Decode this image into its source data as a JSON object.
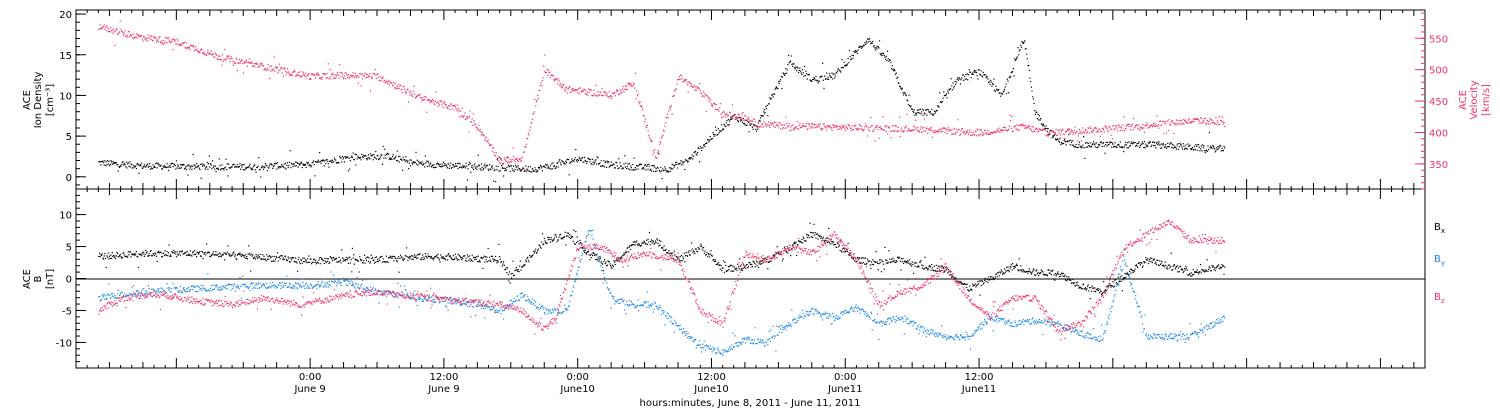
{
  "chart_data": [
    {
      "type": "scatter",
      "panel": "top",
      "left_axis": {
        "label_lines": [
          "ACE",
          "Ion Density",
          "[cm⁻³]"
        ],
        "ylim": [
          -1.5,
          20.5
        ],
        "ticks": [
          "0",
          "5",
          "10",
          "15",
          "20"
        ],
        "tick_values": [
          0,
          5,
          10,
          15,
          20
        ]
      },
      "right_axis": {
        "label_lines": [
          "ACE",
          "Velocity",
          "[km/s]"
        ],
        "ylim": [
          310,
          595
        ],
        "ticks": [
          "350",
          "400",
          "450",
          "500",
          "550"
        ],
        "tick_values": [
          350,
          400,
          450,
          500,
          550
        ],
        "color": "#ee3366"
      },
      "series": [
        {
          "axis": "left",
          "color": "#000000",
          "x": [
            -19,
            -15,
            -10,
            -5,
            0,
            4,
            7,
            9,
            12,
            15,
            18,
            20,
            22,
            24,
            27,
            30,
            32,
            34,
            36,
            38,
            40,
            41,
            43,
            45,
            47,
            50,
            52,
            54,
            56,
            58,
            60,
            62,
            64,
            65,
            66,
            67,
            69,
            70,
            72,
            74,
            76,
            78,
            80,
            82
          ],
          "y": [
            1.8,
            1.4,
            1.3,
            1.3,
            1.6,
            2.5,
            2.6,
            1.8,
            1.5,
            1.3,
            1.1,
            1.0,
            1.5,
            2.3,
            1.5,
            1.2,
            1.0,
            2.2,
            5.0,
            7.5,
            6.0,
            9.0,
            14.0,
            12.0,
            12.5,
            17.0,
            14.0,
            8.0,
            8.0,
            12.0,
            13.0,
            10.0,
            17.0,
            8.0,
            6.0,
            4.5,
            4.0,
            4.0,
            4.0,
            4.0,
            4.0,
            3.8,
            3.6,
            3.5
          ]
        },
        {
          "axis": "right",
          "color": "#ee3366",
          "x": [
            -19,
            -16,
            -12,
            -8,
            -4,
            0,
            3,
            6,
            10,
            13,
            15,
            17,
            19,
            21,
            23,
            25,
            27,
            29,
            31,
            33,
            35,
            37,
            39,
            40,
            42,
            45,
            50,
            55,
            60,
            64,
            66,
            70,
            74,
            76,
            80,
            82
          ],
          "y": [
            570,
            555,
            545,
            520,
            505,
            490,
            492,
            490,
            455,
            440,
            410,
            355,
            360,
            500,
            470,
            465,
            460,
            480,
            360,
            490,
            465,
            430,
            425,
            415,
            412,
            410,
            408,
            406,
            400,
            410,
            400,
            405,
            410,
            415,
            420,
            415
          ]
        }
      ]
    },
    {
      "type": "scatter",
      "panel": "bottom",
      "left_axis": {
        "label_lines": [
          "ACE",
          "B",
          "[nT]"
        ],
        "ylim": [
          -14,
          14
        ],
        "ticks": [
          "-10",
          "-5",
          "0",
          "5",
          "10"
        ],
        "tick_values": [
          -10,
          -5,
          0,
          5,
          10
        ]
      },
      "legend": {
        "placement": "right",
        "entries": [
          {
            "label": "B",
            "sub": "x",
            "color": "#000000"
          },
          {
            "label": "B",
            "sub": "y",
            "color": "#1e88e5"
          },
          {
            "label": "B",
            "sub": "z",
            "color": "#ee3366"
          }
        ]
      },
      "series": [
        {
          "name": "Bx",
          "color": "#000000",
          "x": [
            -19,
            -15,
            -10,
            -5,
            0,
            3,
            6,
            10,
            12,
            15,
            17,
            18,
            19,
            21,
            23,
            25,
            27,
            29,
            31,
            33,
            35,
            37,
            39,
            41,
            43,
            45,
            47,
            49,
            51,
            53,
            55,
            57,
            59,
            61,
            63,
            65,
            67,
            69,
            71,
            73,
            75,
            77,
            79,
            82
          ],
          "y": [
            3.5,
            4.0,
            4.0,
            3.5,
            2.8,
            3.0,
            3.0,
            3.5,
            3.5,
            3.2,
            3.0,
            0.5,
            2.0,
            6.0,
            7.0,
            4.0,
            2.0,
            5.5,
            6.0,
            3.0,
            5.0,
            1.5,
            2.0,
            3.0,
            5.0,
            7.0,
            5.5,
            3.0,
            2.5,
            3.0,
            2.0,
            1.5,
            -1.5,
            0.0,
            2.0,
            1.0,
            1.0,
            -1.0,
            -2.0,
            0.5,
            3.0,
            2.0,
            1.0,
            2.0
          ]
        },
        {
          "name": "By",
          "color": "#1e88e5",
          "x": [
            -19,
            -15,
            -10,
            -5,
            0,
            3,
            6,
            10,
            13,
            15,
            17,
            19,
            21,
            23,
            25,
            27,
            29,
            31,
            33,
            35,
            37,
            39,
            41,
            43,
            45,
            47,
            49,
            51,
            53,
            55,
            57,
            59,
            61,
            63,
            65,
            67,
            69,
            71,
            73,
            75,
            77,
            79,
            82
          ],
          "y": [
            -3.0,
            -2.0,
            -1.5,
            -1.0,
            -1.0,
            -0.5,
            -2.0,
            -3.0,
            -3.5,
            -4.0,
            -5.0,
            -2.5,
            -5.0,
            -5.0,
            8.0,
            -3.0,
            -4.0,
            -4.0,
            -7.5,
            -10.5,
            -11.5,
            -9.5,
            -10.0,
            -7.0,
            -5.0,
            -6.0,
            -4.5,
            -7.0,
            -6.0,
            -8.0,
            -9.0,
            -9.0,
            -6.0,
            -7.0,
            -6.5,
            -7.0,
            -8.5,
            -9.5,
            3.0,
            -9.0,
            -9.0,
            -9.0,
            -6.0
          ]
        },
        {
          "name": "Bz",
          "color": "#ee3366",
          "x": [
            -19,
            -17,
            -15,
            -13,
            -10,
            -7,
            -4,
            -1,
            2,
            5,
            8,
            11,
            14,
            17,
            19,
            21,
            22,
            24,
            26,
            28,
            30,
            33,
            35,
            37,
            39,
            41,
            43,
            45,
            47,
            49,
            51,
            53,
            55,
            57,
            59,
            61,
            63,
            65,
            67,
            69,
            71,
            73,
            75,
            77,
            79,
            82
          ],
          "y": [
            -5.0,
            -3.0,
            -2.5,
            -2.5,
            -3.5,
            -4.0,
            -3.0,
            -4.0,
            -3.0,
            -2.0,
            -2.5,
            -3.0,
            -3.5,
            -4.0,
            -5.0,
            -8.0,
            -6.0,
            5.0,
            5.0,
            3.0,
            4.0,
            3.0,
            -5.0,
            -7.0,
            4.0,
            3.0,
            5.0,
            4.0,
            7.0,
            3.0,
            -4.0,
            -2.0,
            -1.0,
            2.0,
            -3.0,
            -6.0,
            -3.0,
            -3.0,
            -8.0,
            -7.0,
            -3.0,
            5.0,
            7.0,
            9.0,
            6.0,
            6.0
          ]
        }
      ],
      "zero_line": true
    }
  ],
  "x_axis": {
    "range_hours": [
      -21,
      100
    ],
    "ticks": [
      {
        "hour": 0,
        "time": "0:00",
        "date": "June 9"
      },
      {
        "hour": 12,
        "time": "12:00",
        "date": "June 9"
      },
      {
        "hour": 24,
        "time": "0:00",
        "date": "June10"
      },
      {
        "hour": 36,
        "time": "12:00",
        "date": "June10"
      },
      {
        "hour": 48,
        "time": "0:00",
        "date": "June11"
      },
      {
        "hour": 60,
        "time": "12:00",
        "date": "June11"
      }
    ],
    "caption": "hours:minutes, June  8, 2011 - June 11, 2011"
  }
}
